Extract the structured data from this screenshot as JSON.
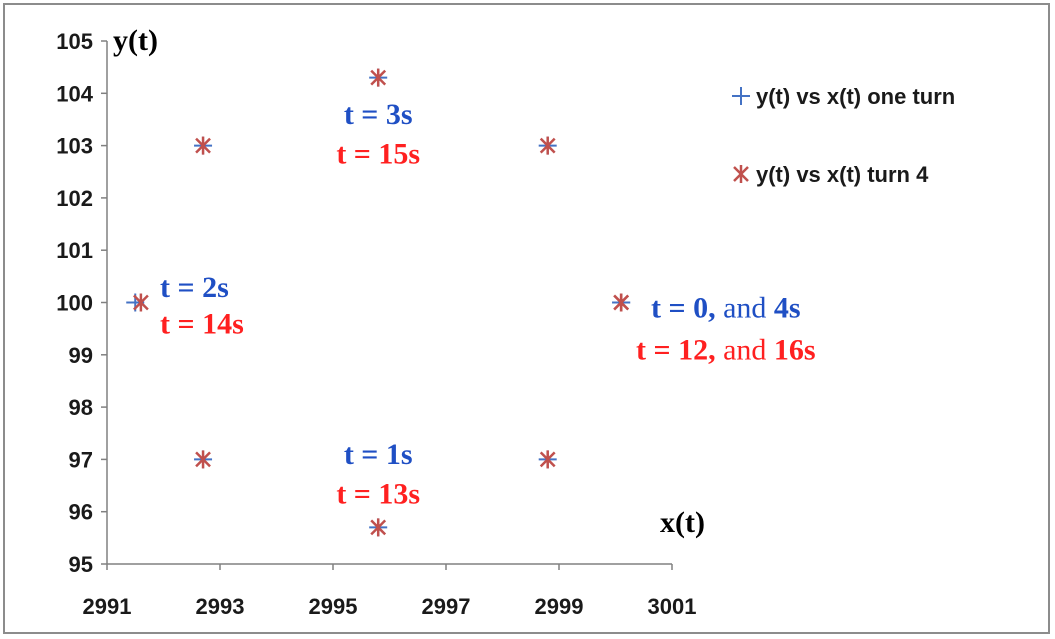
{
  "chart_data": {
    "type": "scatter",
    "xlabel": "x(t)",
    "ylabel": "y(t)",
    "xlim": [
      2991,
      3001
    ],
    "ylim": [
      95,
      105
    ],
    "x_ticks": [
      "2991",
      "2993",
      "2995",
      "2997",
      "2999",
      "3001"
    ],
    "y_ticks": [
      "95",
      "96",
      "97",
      "98",
      "99",
      "100",
      "101",
      "102",
      "103",
      "104",
      "105"
    ],
    "grid": false,
    "legend_position": "top-right",
    "series": [
      {
        "name": "y(t) vs x(t) one turn",
        "marker": "plus",
        "color": "#4472c4",
        "x": [
          3000.1,
          2998.8,
          2995.8,
          2992.7,
          2991.5,
          2992.7,
          2995.8,
          2998.8,
          3000.1
        ],
        "y": [
          100,
          97,
          95.7,
          97,
          100,
          103,
          104.3,
          103,
          100
        ]
      },
      {
        "name": "y(t) vs x(t) turn 4",
        "marker": "star",
        "color": "#c0504d",
        "x": [
          3000.1,
          2998.8,
          2995.8,
          2992.7,
          2991.6,
          2992.7,
          2995.8,
          2998.8,
          3000.1
        ],
        "y": [
          100,
          97,
          95.7,
          97,
          100,
          103,
          104.3,
          103,
          100
        ]
      }
    ],
    "annotations": [
      {
        "id": "t3",
        "x": 2995.8,
        "y": 103.6,
        "segments": [
          {
            "text": "t = 3s",
            "color": "#1f4fc4",
            "bold": true
          }
        ]
      },
      {
        "id": "t15",
        "x": 2995.8,
        "y": 102.85,
        "segments": [
          {
            "text": "t = 15s",
            "color": "#ff2020",
            "bold": true
          }
        ]
      },
      {
        "id": "t2",
        "x": 2993.0,
        "y": 100.3,
        "segments": [
          {
            "text": "t = 2s",
            "color": "#1f4fc4",
            "bold": true
          }
        ]
      },
      {
        "id": "t14",
        "x": 2993.0,
        "y": 99.6,
        "segments": [
          {
            "text": "t = 14s",
            "color": "#ff2020",
            "bold": true
          }
        ]
      },
      {
        "id": "t0",
        "x": 3000.1,
        "y": 99.9,
        "segments": [
          {
            "text": "t = 0,",
            "color": "#1f4fc4",
            "bold": true
          },
          {
            "text": " and ",
            "color": "#1f4fc4",
            "bold": false
          },
          {
            "text": "4s",
            "color": "#1f4fc4",
            "bold": true
          }
        ]
      },
      {
        "id": "t12",
        "x": 3000.1,
        "y": 99.1,
        "segments": [
          {
            "text": "t = 12,",
            "color": "#ff2020",
            "bold": true
          },
          {
            "text": " and ",
            "color": "#ff2020",
            "bold": false
          },
          {
            "text": "16s",
            "color": "#ff2020",
            "bold": true
          }
        ]
      },
      {
        "id": "t1",
        "x": 2995.8,
        "y": 97.1,
        "segments": [
          {
            "text": "t = 1s",
            "color": "#1f4fc4",
            "bold": true
          }
        ]
      },
      {
        "id": "t13",
        "x": 2995.8,
        "y": 96.35,
        "segments": [
          {
            "text": "t = 13s",
            "color": "#ff2020",
            "bold": true
          }
        ]
      }
    ]
  }
}
